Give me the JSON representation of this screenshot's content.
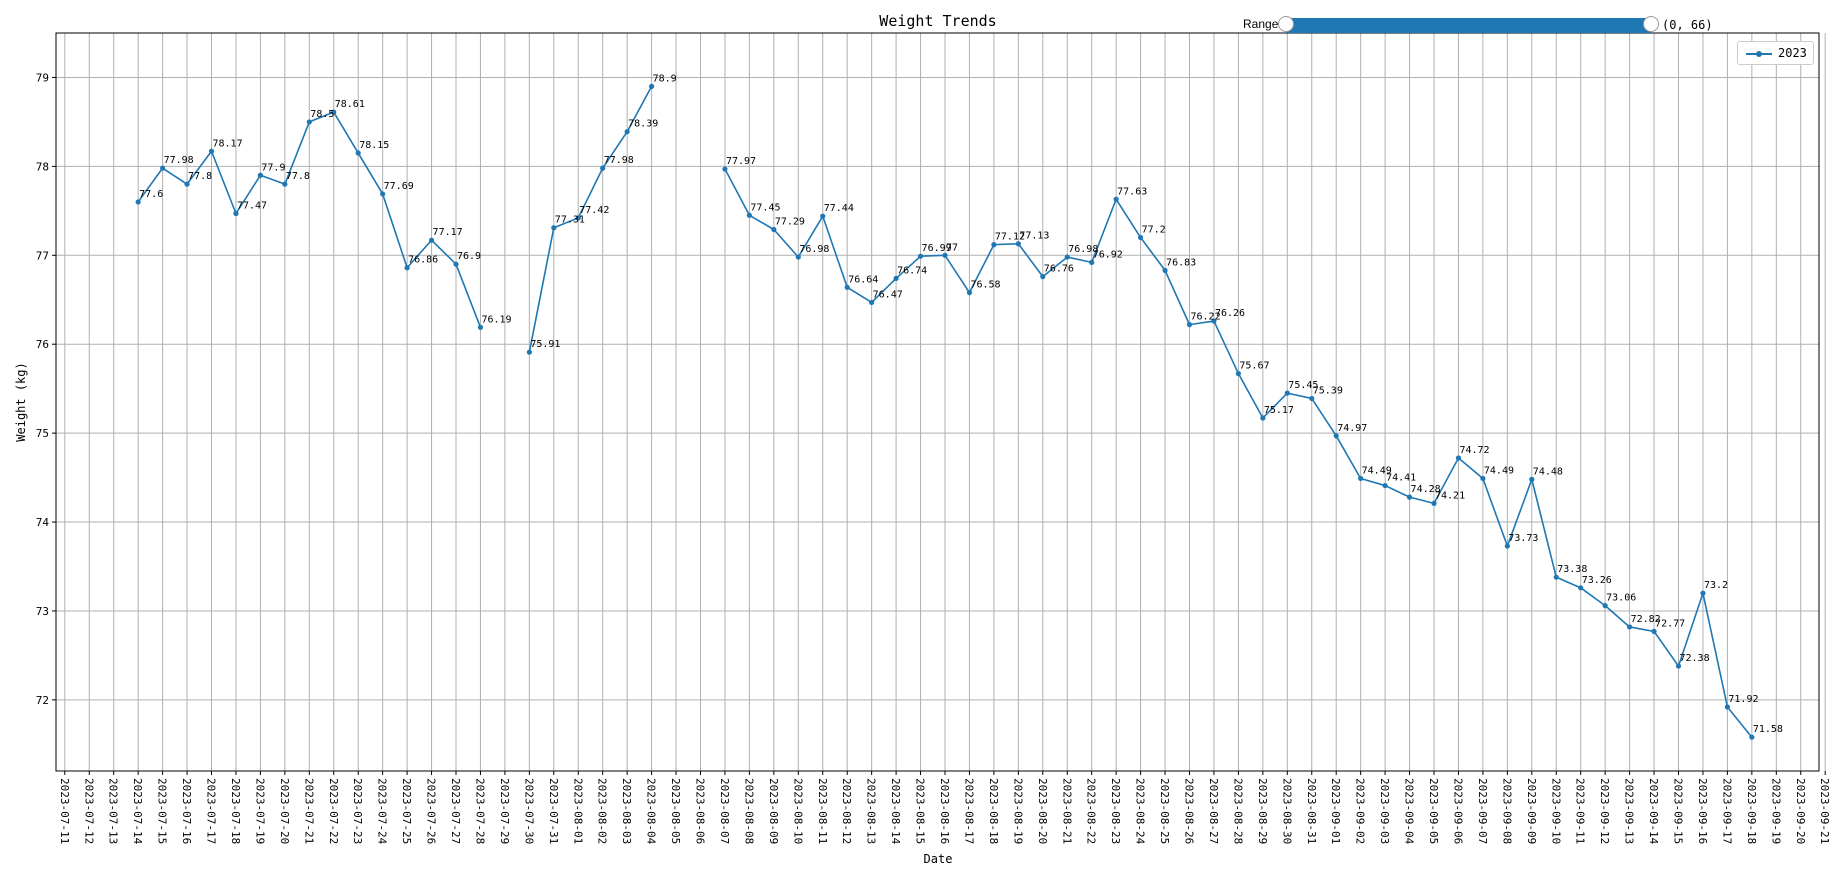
{
  "chart_data": {
    "type": "line",
    "title": "Weight Trends",
    "xlabel": "Date",
    "ylabel": "Weight (kg)",
    "ylim": [
      71.2,
      79.5
    ],
    "yticks": [
      72,
      73,
      74,
      75,
      76,
      77,
      78,
      79
    ],
    "grid": true,
    "legend_position": "top-right",
    "x": [
      "2023-07-11",
      "2023-07-12",
      "2023-07-13",
      "2023-07-14",
      "2023-07-15",
      "2023-07-16",
      "2023-07-17",
      "2023-07-18",
      "2023-07-19",
      "2023-07-20",
      "2023-07-21",
      "2023-07-22",
      "2023-07-23",
      "2023-07-24",
      "2023-07-25",
      "2023-07-26",
      "2023-07-27",
      "2023-07-28",
      "2023-07-29",
      "2023-07-30",
      "2023-07-31",
      "2023-08-01",
      "2023-08-02",
      "2023-08-03",
      "2023-08-04",
      "2023-08-05",
      "2023-08-06",
      "2023-08-07",
      "2023-08-08",
      "2023-08-09",
      "2023-08-10",
      "2023-08-11",
      "2023-08-12",
      "2023-08-13",
      "2023-08-14",
      "2023-08-15",
      "2023-08-16",
      "2023-08-17",
      "2023-08-18",
      "2023-08-19",
      "2023-08-20",
      "2023-08-21",
      "2023-08-22",
      "2023-08-23",
      "2023-08-24",
      "2023-08-25",
      "2023-08-26",
      "2023-08-27",
      "2023-08-28",
      "2023-08-29",
      "2023-08-30",
      "2023-08-31",
      "2023-09-01",
      "2023-09-02",
      "2023-09-03",
      "2023-09-04",
      "2023-09-05",
      "2023-09-06",
      "2023-09-07",
      "2023-09-08",
      "2023-09-09",
      "2023-09-10",
      "2023-09-11",
      "2023-09-12",
      "2023-09-13",
      "2023-09-14",
      "2023-09-15",
      "2023-09-16",
      "2023-09-17",
      "2023-09-18",
      "2023-09-19",
      "2023-09-20",
      "2023-09-21"
    ],
    "series": [
      {
        "name": "2023",
        "color": "#1f77b4",
        "values": [
          null,
          null,
          null,
          77.6,
          77.98,
          77.8,
          78.17,
          77.47,
          77.9,
          77.8,
          78.5,
          78.61,
          78.15,
          77.69,
          76.86,
          77.17,
          76.9,
          76.19,
          null,
          75.91,
          77.31,
          77.42,
          77.98,
          78.39,
          78.9,
          null,
          null,
          77.97,
          77.45,
          77.29,
          76.98,
          77.44,
          76.64,
          76.47,
          76.74,
          76.99,
          77.0,
          76.58,
          77.12,
          77.13,
          76.76,
          76.98,
          76.92,
          77.63,
          77.2,
          76.83,
          76.22,
          76.26,
          75.67,
          75.17,
          75.45,
          75.39,
          74.97,
          74.49,
          74.41,
          74.28,
          74.21,
          74.72,
          74.49,
          73.73,
          74.48,
          73.38,
          73.26,
          73.06,
          72.82,
          72.77,
          72.38,
          73.2,
          71.92,
          71.58,
          null,
          null,
          null
        ],
        "labels": [
          null,
          null,
          null,
          "77.6",
          "77.98",
          "77.8",
          "78.17",
          "77.47",
          "77.9",
          "77.8",
          "78.5",
          "78.61",
          "78.15",
          "77.69",
          "76.86",
          "77.17",
          "76.9",
          "76.19",
          null,
          "75.91",
          "77.31",
          "77.42",
          "77.98",
          "78.39",
          "78.9",
          null,
          null,
          "77.97",
          "77.45",
          "77.29",
          "76.98",
          "77.44",
          "76.64",
          "76.47",
          "76.74",
          "76.99",
          "77",
          "76.58",
          "77.12",
          "77.13",
          "76.76",
          "76.98",
          "76.92",
          "77.63",
          "77.2",
          "76.83",
          "76.22",
          "76.26",
          "75.67",
          "75.17",
          "75.45",
          "75.39",
          "74.97",
          "74.49",
          "74.41",
          "74.28",
          "74.21",
          "74.72",
          "74.49",
          "73.73",
          "74.48",
          "73.38",
          "73.26",
          "73.06",
          "72.82",
          "72.77",
          "72.38",
          "73.2",
          "71.92",
          "71.58",
          null,
          null,
          null
        ]
      }
    ]
  },
  "slider": {
    "label": "Range",
    "value_text": "(0, 66)",
    "color": "#1f77b4"
  },
  "legend": {
    "entries": [
      "2023"
    ]
  }
}
